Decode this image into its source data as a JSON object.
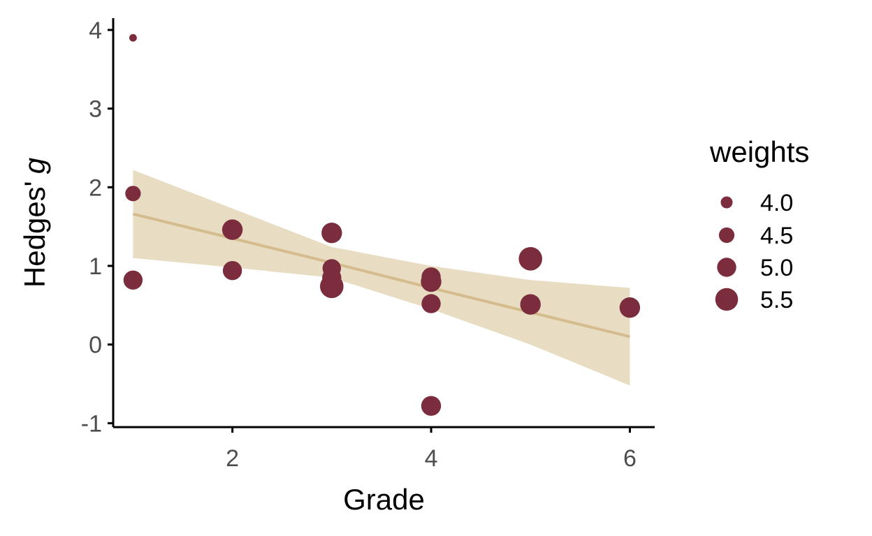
{
  "chart_data": {
    "type": "scatter",
    "title": "",
    "xlabel": "Grade",
    "ylabel_main": "Hedges'",
    "ylabel_symbol": "g",
    "xlim": [
      0.8,
      6.25
    ],
    "ylim": [
      -1.05,
      4.15
    ],
    "x_ticks": [
      2,
      4,
      6
    ],
    "y_ticks": [
      -1,
      0,
      1,
      2,
      3,
      4
    ],
    "grid": false,
    "legend_position": "right",
    "size_legend": {
      "title": "weights",
      "entries": [
        {
          "label": "4.0",
          "weight": 4.0
        },
        {
          "label": "4.5",
          "weight": 4.5
        },
        {
          "label": "5.0",
          "weight": 5.0
        },
        {
          "label": "5.5",
          "weight": 5.5
        }
      ]
    },
    "colors": {
      "points": "#7b2d3e",
      "fit_line": "#d4bc8c",
      "ribbon": "#e8dcc3",
      "axis": "#000000",
      "tick_text": "#4d4d4d"
    },
    "points": [
      {
        "x": 1,
        "y": 3.9,
        "weight": 3.4
      },
      {
        "x": 1,
        "y": 1.92,
        "weight": 4.5
      },
      {
        "x": 1,
        "y": 0.82,
        "weight": 5.0
      },
      {
        "x": 2,
        "y": 1.46,
        "weight": 5.2
      },
      {
        "x": 2,
        "y": 0.94,
        "weight": 5.0
      },
      {
        "x": 3,
        "y": 1.42,
        "weight": 5.2
      },
      {
        "x": 3,
        "y": 0.97,
        "weight": 4.9
      },
      {
        "x": 3,
        "y": 0.85,
        "weight": 5.0
      },
      {
        "x": 3,
        "y": 0.74,
        "weight": 5.6
      },
      {
        "x": 4,
        "y": 0.86,
        "weight": 5.0
      },
      {
        "x": 4,
        "y": 0.8,
        "weight": 5.2
      },
      {
        "x": 4,
        "y": 0.52,
        "weight": 5.0
      },
      {
        "x": 4,
        "y": -0.78,
        "weight": 5.1
      },
      {
        "x": 5,
        "y": 1.09,
        "weight": 5.6
      },
      {
        "x": 5,
        "y": 0.51,
        "weight": 5.2
      },
      {
        "x": 6,
        "y": 0.47,
        "weight": 5.2
      }
    ],
    "fit": {
      "x": [
        1,
        2,
        3,
        4,
        5,
        6
      ],
      "y": [
        1.66,
        1.35,
        1.04,
        0.72,
        0.41,
        0.1
      ],
      "lower": [
        1.1,
        0.98,
        0.85,
        0.45,
        0.0,
        -0.52
      ],
      "upper": [
        2.22,
        1.73,
        1.24,
        1.0,
        0.82,
        0.72
      ]
    }
  }
}
